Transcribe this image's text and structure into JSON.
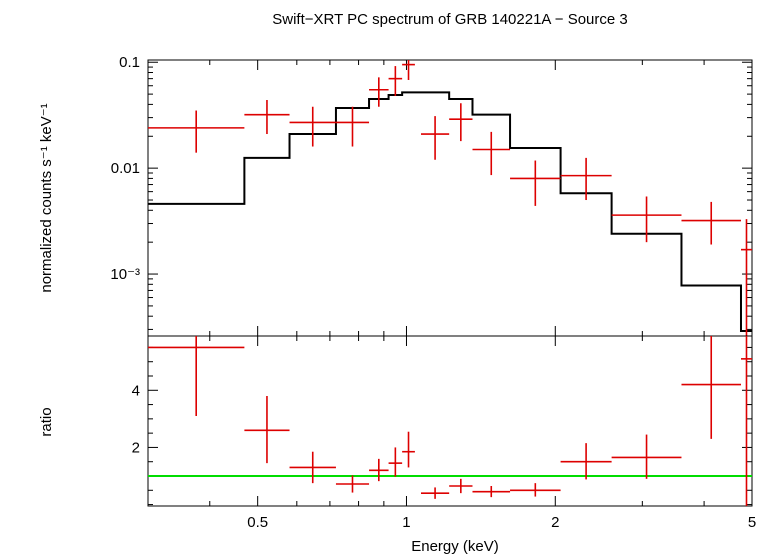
{
  "chart_data": [
    {
      "type": "scatter",
      "panel": "spectrum",
      "title": "Swift−XRT PC spectrum of GRB 140221A − Source 3",
      "xlabel": "",
      "ylabel": "normalized counts s⁻¹ keV⁻¹",
      "xscale": "log",
      "yscale": "log",
      "xlim": [
        0.3,
        5.0
      ],
      "ylim": [
        0.00026,
        0.105
      ],
      "yticks": [
        {
          "v": 0.1,
          "label": "0.1"
        },
        {
          "v": 0.01,
          "label": "0.01"
        },
        {
          "v": 0.001,
          "label": "10⁻³"
        }
      ],
      "data_color": "#dd0000",
      "model_color": "#000000",
      "series": [
        {
          "name": "",
          "kind": "data",
          "points": [
            {
              "x0": 0.3,
              "x1": 0.47,
              "y": 0.024,
              "ylo": 0.014,
              "yhi": 0.035
            },
            {
              "x0": 0.47,
              "x1": 0.58,
              "y": 0.032,
              "ylo": 0.021,
              "yhi": 0.044
            },
            {
              "x0": 0.58,
              "x1": 0.72,
              "y": 0.027,
              "ylo": 0.016,
              "yhi": 0.038
            },
            {
              "x0": 0.72,
              "x1": 0.84,
              "y": 0.027,
              "ylo": 0.016,
              "yhi": 0.038
            },
            {
              "x0": 0.84,
              "x1": 0.92,
              "y": 0.055,
              "ylo": 0.038,
              "yhi": 0.072
            },
            {
              "x0": 0.92,
              "x1": 0.98,
              "y": 0.07,
              "ylo": 0.048,
              "yhi": 0.092
            },
            {
              "x0": 0.98,
              "x1": 1.04,
              "y": 0.095,
              "ylo": 0.068,
              "yhi": 0.105
            },
            {
              "x0": 1.07,
              "x1": 1.22,
              "y": 0.021,
              "ylo": 0.012,
              "yhi": 0.031
            },
            {
              "x0": 1.22,
              "x1": 1.36,
              "y": 0.029,
              "ylo": 0.018,
              "yhi": 0.041
            },
            {
              "x0": 1.36,
              "x1": 1.62,
              "y": 0.015,
              "ylo": 0.0086,
              "yhi": 0.022
            },
            {
              "x0": 1.62,
              "x1": 2.05,
              "y": 0.008,
              "ylo": 0.0044,
              "yhi": 0.0118
            },
            {
              "x0": 2.05,
              "x1": 2.6,
              "y": 0.0085,
              "ylo": 0.005,
              "yhi": 0.0125
            },
            {
              "x0": 2.6,
              "x1": 3.6,
              "y": 0.0036,
              "ylo": 0.002,
              "yhi": 0.0054
            },
            {
              "x0": 3.6,
              "x1": 4.75,
              "y": 0.0032,
              "ylo": 0.0019,
              "yhi": 0.0048
            },
            {
              "x0": 4.75,
              "x1": 5.0,
              "y": 0.0017,
              "ylo": 0.00026,
              "yhi": 0.0033
            }
          ]
        },
        {
          "name": "",
          "kind": "model",
          "steps": [
            {
              "x0": 0.3,
              "x1": 0.47,
              "y": 0.0046
            },
            {
              "x0": 0.47,
              "x1": 0.58,
              "y": 0.0125
            },
            {
              "x0": 0.58,
              "x1": 0.72,
              "y": 0.021
            },
            {
              "x0": 0.72,
              "x1": 0.84,
              "y": 0.037
            },
            {
              "x0": 0.84,
              "x1": 0.92,
              "y": 0.045
            },
            {
              "x0": 0.92,
              "x1": 0.98,
              "y": 0.049
            },
            {
              "x0": 0.98,
              "x1": 1.22,
              "y": 0.052
            },
            {
              "x0": 1.22,
              "x1": 1.36,
              "y": 0.045
            },
            {
              "x0": 1.36,
              "x1": 1.62,
              "y": 0.032
            },
            {
              "x0": 1.62,
              "x1": 2.05,
              "y": 0.0155
            },
            {
              "x0": 2.05,
              "x1": 2.6,
              "y": 0.0058
            },
            {
              "x0": 2.6,
              "x1": 3.6,
              "y": 0.0024
            },
            {
              "x0": 3.6,
              "x1": 4.75,
              "y": 0.00078
            },
            {
              "x0": 4.75,
              "x1": 5.0,
              "y": 0.00029
            }
          ]
        }
      ]
    },
    {
      "type": "scatter",
      "panel": "ratio",
      "xlabel": "Energy (keV)",
      "ylabel": "ratio",
      "xscale": "log",
      "yscale": "linear",
      "xlim": [
        0.3,
        5.0
      ],
      "ylim": [
        -0.05,
        5.9
      ],
      "xticks": [
        {
          "v": 0.5,
          "label": "0.5"
        },
        {
          "v": 1,
          "label": "1"
        },
        {
          "v": 2,
          "label": "2"
        },
        {
          "v": 5,
          "label": "5"
        }
      ],
      "yticks": [
        {
          "v": 2,
          "label": "2"
        },
        {
          "v": 4,
          "label": "4"
        }
      ],
      "reference_line": {
        "y": 1,
        "color": "#00dd00"
      },
      "series": [
        {
          "name": "",
          "kind": "ratio",
          "points": [
            {
              "x0": 0.3,
              "x1": 0.47,
              "y": 5.5,
              "ylo": 3.1,
              "yhi": 5.9
            },
            {
              "x0": 0.47,
              "x1": 0.58,
              "y": 2.6,
              "ylo": 1.45,
              "yhi": 3.8
            },
            {
              "x0": 0.58,
              "x1": 0.72,
              "y": 1.3,
              "ylo": 0.75,
              "yhi": 1.85
            },
            {
              "x0": 0.72,
              "x1": 0.84,
              "y": 0.72,
              "ylo": 0.42,
              "yhi": 1.02
            },
            {
              "x0": 0.84,
              "x1": 0.92,
              "y": 1.2,
              "ylo": 0.82,
              "yhi": 1.6
            },
            {
              "x0": 0.92,
              "x1": 0.98,
              "y": 1.45,
              "ylo": 0.98,
              "yhi": 2.0
            },
            {
              "x0": 0.98,
              "x1": 1.04,
              "y": 1.85,
              "ylo": 1.3,
              "yhi": 2.55
            },
            {
              "x0": 1.07,
              "x1": 1.22,
              "y": 0.4,
              "ylo": 0.2,
              "yhi": 0.6
            },
            {
              "x0": 1.22,
              "x1": 1.36,
              "y": 0.65,
              "ylo": 0.4,
              "yhi": 0.9
            },
            {
              "x0": 1.36,
              "x1": 1.62,
              "y": 0.45,
              "ylo": 0.26,
              "yhi": 0.65
            },
            {
              "x0": 1.62,
              "x1": 2.05,
              "y": 0.5,
              "ylo": 0.28,
              "yhi": 0.75
            },
            {
              "x0": 2.05,
              "x1": 2.6,
              "y": 1.5,
              "ylo": 0.88,
              "yhi": 2.15
            },
            {
              "x0": 2.6,
              "x1": 3.6,
              "y": 1.65,
              "ylo": 0.9,
              "yhi": 2.45
            },
            {
              "x0": 3.6,
              "x1": 4.75,
              "y": 4.2,
              "ylo": 2.3,
              "yhi": 5.9
            },
            {
              "x0": 4.75,
              "x1": 5.0,
              "y": 5.1,
              "ylo": -0.05,
              "yhi": 5.9
            }
          ]
        }
      ]
    }
  ]
}
